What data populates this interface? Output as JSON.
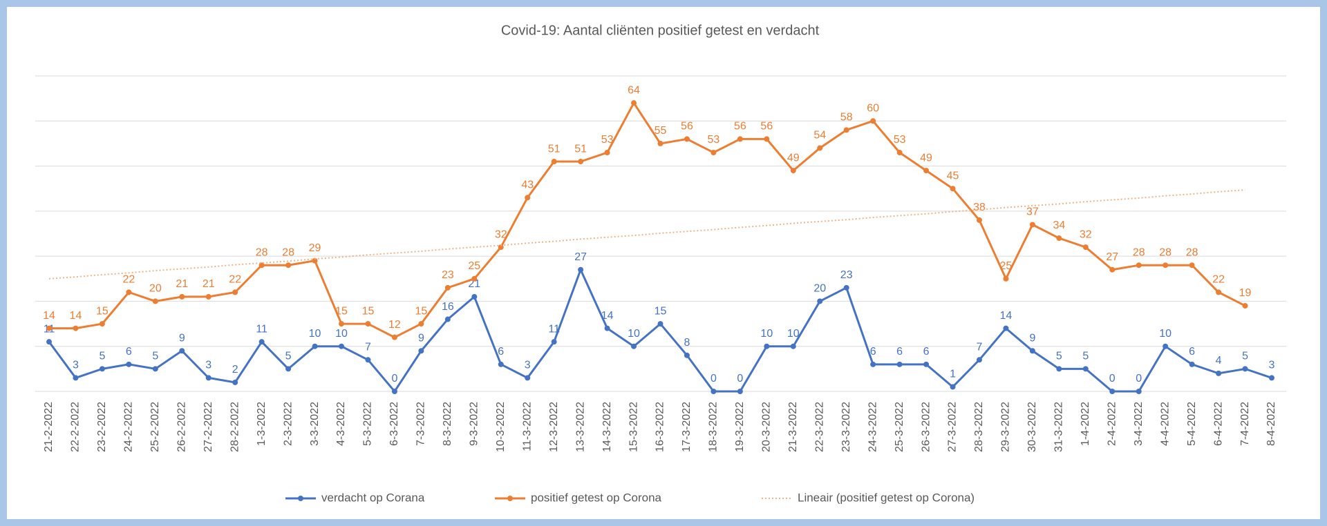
{
  "chart_data": {
    "type": "line",
    "title": "Covid-19: Aantal cliënten positief getest en verdacht",
    "categories": [
      "21-2-2022",
      "22-2-2022",
      "23-2-2022",
      "24-2-2022",
      "25-2-2022",
      "26-2-2022",
      "27-2-2022",
      "28-2-2022",
      "1-3-2022",
      "2-3-2022",
      "3-3-2022",
      "4-3-2022",
      "5-3-2022",
      "6-3-2022",
      "7-3-2022",
      "8-3-2022",
      "9-3-2022",
      "10-3-2022",
      "11-3-2022",
      "12-3-2022",
      "13-3-2022",
      "14-3-2022",
      "15-3-2022",
      "16-3-2022",
      "17-3-2022",
      "18-3-2022",
      "19-3-2022",
      "20-3-2022",
      "21-3-2022",
      "22-3-2022",
      "23-3-2022",
      "24-3-2022",
      "25-3-2022",
      "26-3-2022",
      "27-3-2022",
      "28-3-2022",
      "29-3-2022",
      "30-3-2022",
      "31-3-2022",
      "1-4-2022",
      "2-4-2022",
      "3-4-2022",
      "4-4-2022",
      "5-4-2022",
      "6-4-2022",
      "7-4-2022",
      "8-4-2022"
    ],
    "series": [
      {
        "name": "verdacht op Corana",
        "color": "#4472c4",
        "style": "solid",
        "values": [
          11,
          3,
          5,
          6,
          5,
          9,
          3,
          2,
          11,
          5,
          10,
          10,
          7,
          0,
          9,
          16,
          21,
          6,
          3,
          11,
          27,
          14,
          10,
          15,
          8,
          0,
          0,
          10,
          10,
          20,
          23,
          6,
          6,
          6,
          1,
          7,
          14,
          9,
          5,
          5,
          0,
          0,
          10,
          6,
          4,
          5,
          3
        ]
      },
      {
        "name": "positief getest op Corona",
        "color": "#ed7d31",
        "style": "solid",
        "values": [
          14,
          14,
          15,
          22,
          20,
          21,
          21,
          22,
          28,
          28,
          29,
          15,
          15,
          12,
          15,
          23,
          25,
          32,
          43,
          51,
          51,
          53,
          64,
          55,
          56,
          53,
          56,
          56,
          49,
          54,
          58,
          60,
          53,
          49,
          45,
          38,
          25,
          37,
          34,
          32,
          27,
          28,
          28,
          28,
          22,
          19,
          null
        ]
      },
      {
        "name": "Lineair (positief getest op Corona)",
        "color": "#f4b183",
        "style": "dotted",
        "values": [
          25.0,
          25.4,
          25.9,
          26.3,
          26.8,
          27.2,
          27.6,
          28.1,
          28.5,
          28.9,
          29.4,
          29.8,
          30.3,
          30.7,
          31.1,
          31.6,
          32.0,
          32.4,
          32.9,
          33.3,
          33.8,
          34.2,
          34.6,
          35.1,
          35.5,
          35.9,
          36.4,
          36.8,
          37.3,
          37.7,
          38.1,
          38.6,
          39.0,
          39.4,
          39.9,
          40.3,
          40.8,
          41.2,
          41.6,
          42.1,
          42.5,
          42.9,
          43.4,
          43.8,
          44.3,
          44.7,
          null
        ]
      }
    ],
    "ylim": [
      0,
      70
    ],
    "yticks": [
      0,
      10,
      20,
      30,
      40,
      50,
      60,
      70
    ],
    "grid": true,
    "legend": "bottom"
  }
}
